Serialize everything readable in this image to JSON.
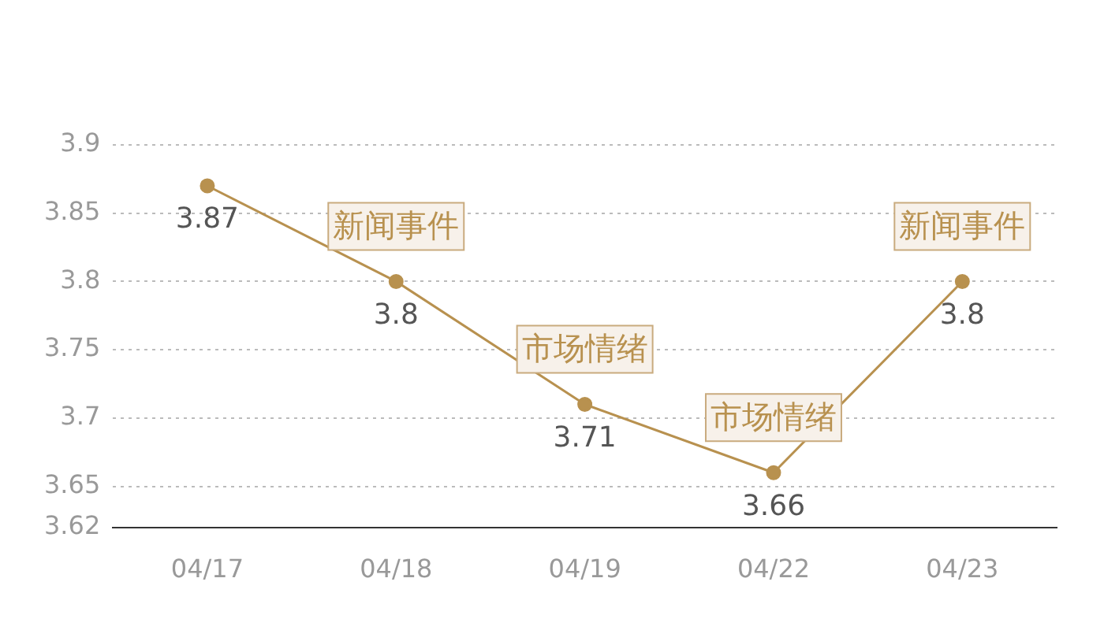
{
  "chart_data": {
    "type": "line",
    "categories": [
      "04/17",
      "04/18",
      "04/19",
      "04/22",
      "04/23"
    ],
    "series": [
      {
        "color": "#b8914f",
        "values": [
          3.87,
          3.8,
          3.71,
          3.66,
          3.8
        ]
      }
    ],
    "ylim": [
      3.62,
      3.9
    ],
    "yticks": [
      3.62,
      3.65,
      3.7,
      3.75,
      3.8,
      3.85,
      3.9
    ],
    "grid": "y",
    "marker": "circle",
    "line_style": "solid",
    "data_labels": true,
    "annotations": [
      {
        "text": "新闻事件",
        "x": "04/18",
        "y": 3.8
      },
      {
        "text": "市场情绪",
        "x": "04/19",
        "y": 3.71
      },
      {
        "text": "市场情绪",
        "x": "04/22",
        "y": 3.66
      },
      {
        "text": "新闻事件",
        "x": "04/23",
        "y": 3.8
      }
    ]
  }
}
